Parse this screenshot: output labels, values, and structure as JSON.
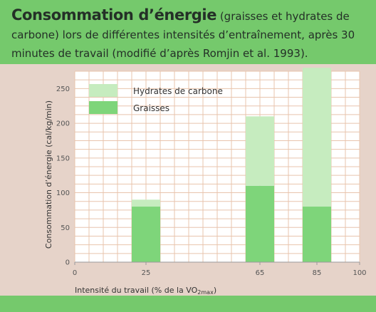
{
  "header": {
    "title_bold": "Consommation d’énergie",
    "title_rest": " (graisses et hydrates de carbone) lors de différentes intensités d’entraînement, après 30 minutes de travail (modifié d’après Romjin et al. 1993)."
  },
  "colors": {
    "header_bg": "#75c96c",
    "figure_bg": "#e6d3c9",
    "fat": "#7ed57a",
    "carb": "#c6ecbf",
    "grid": "#e8c4ad"
  },
  "chart_data": {
    "type": "bar",
    "stacked": true,
    "categories": [
      "25",
      "65",
      "85"
    ],
    "series": [
      {
        "name": "Graisses",
        "values": [
          80,
          110,
          80
        ]
      },
      {
        "name": "Hydrates de carbone",
        "values": [
          10,
          100,
          200
        ]
      }
    ],
    "x": [
      25,
      65,
      85
    ],
    "xlim": [
      0,
      100
    ],
    "ylim": [
      0,
      275
    ],
    "yticks": [
      0,
      50,
      100,
      150,
      200,
      250
    ],
    "xticks": [
      0,
      25,
      65,
      85,
      100
    ],
    "ylabel": "Consommation d’énergie (cal/kg/min)",
    "xlabel_prefix": "Intensité du travail (% de la VO",
    "xlabel_sub": "2max",
    "xlabel_suffix": ")",
    "grid": true,
    "legend": "top-left",
    "legend_items": [
      {
        "label": "Hydrates de carbone"
      },
      {
        "label": "Graisses"
      }
    ]
  }
}
